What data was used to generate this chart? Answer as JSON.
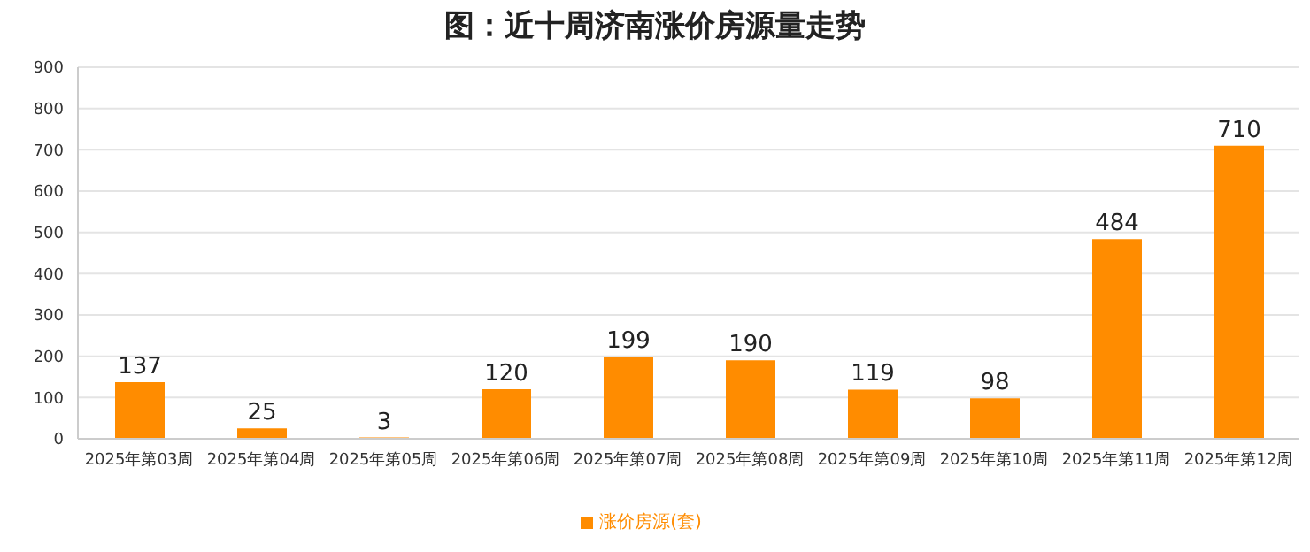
{
  "chart_data": {
    "type": "bar",
    "title": "图：近十周济南涨价房源量走势",
    "categories": [
      "2025年第03周",
      "2025年第04周",
      "2025年第05周",
      "2025年第06周",
      "2025年第07周",
      "2025年第08周",
      "2025年第09周",
      "2025年第10周",
      "2025年第11周",
      "2025年第12周"
    ],
    "series": [
      {
        "name": "涨价房源(套)",
        "color": "#ff8c00",
        "values": [
          137,
          25,
          3,
          120,
          199,
          190,
          119,
          98,
          484,
          710
        ]
      }
    ],
    "ylim": [
      0,
      900
    ],
    "yticks": [
      0,
      100,
      200,
      300,
      400,
      500,
      600,
      700,
      800,
      900
    ],
    "grid": "y",
    "legend": "bottom",
    "data_labels": true
  }
}
